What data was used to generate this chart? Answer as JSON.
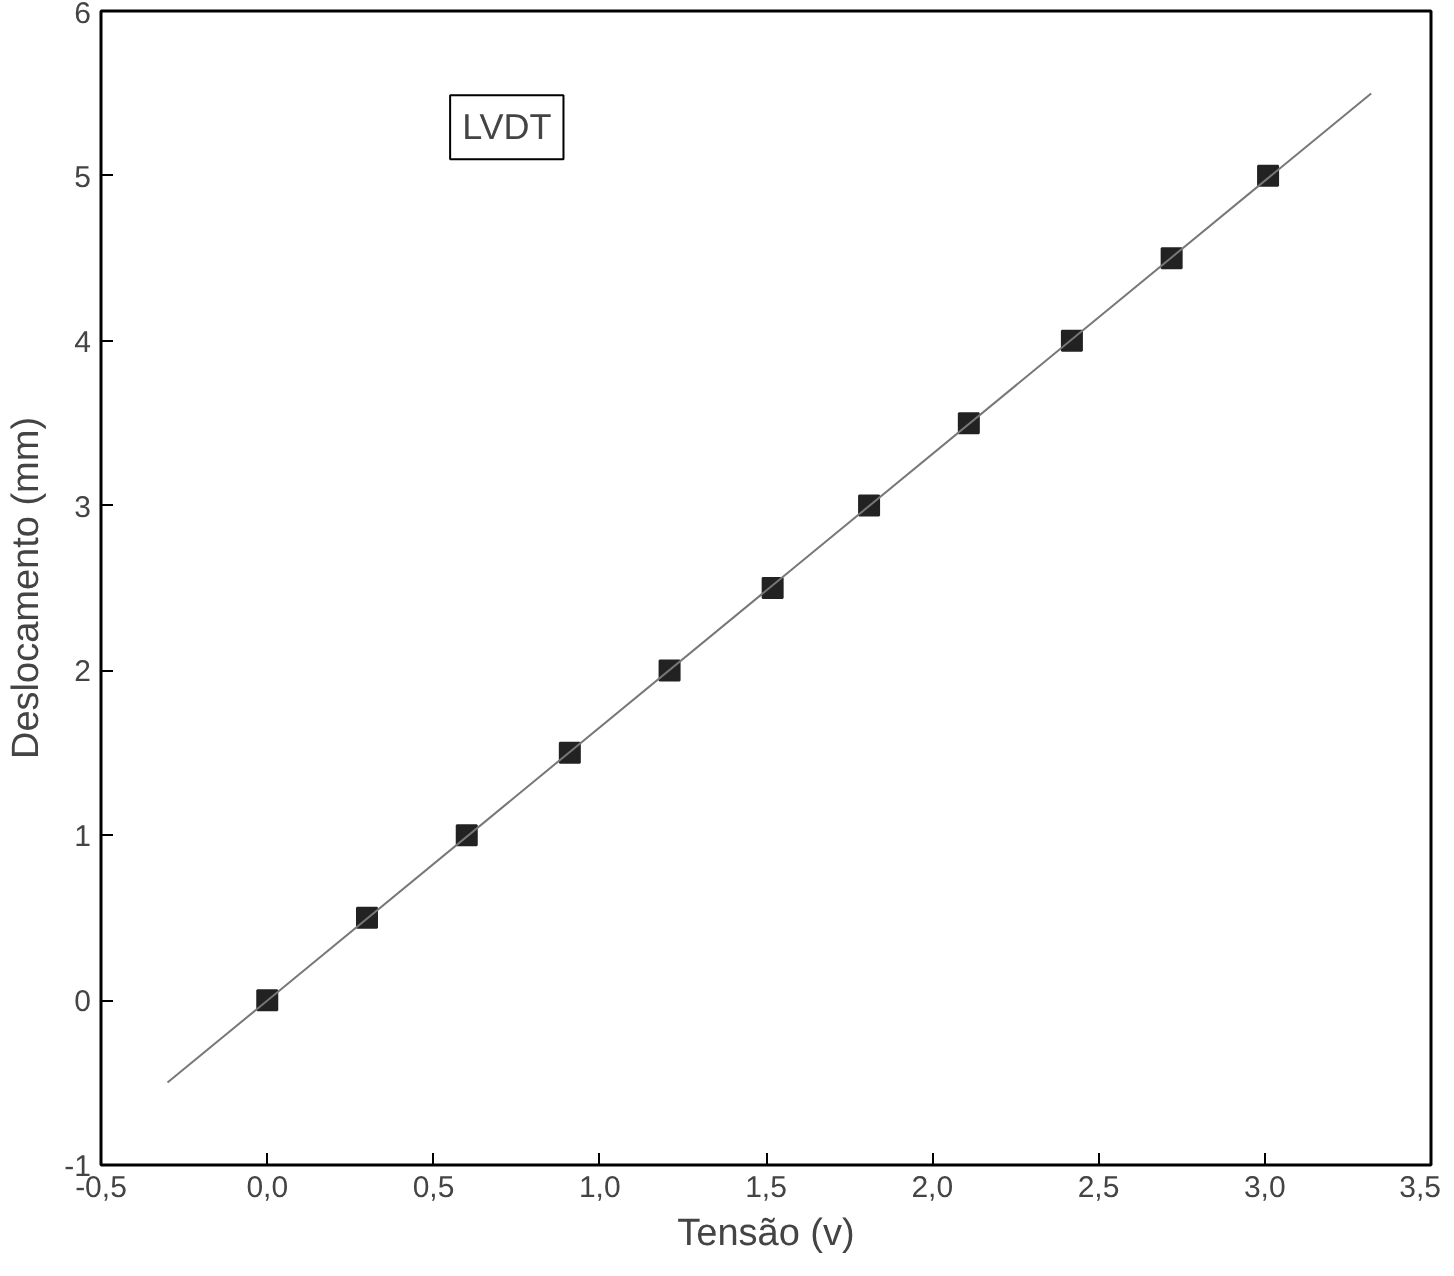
{
  "chart_data": {
    "type": "scatter",
    "xlabel": "Tensão (v)",
    "ylabel": "Deslocamento (mm)",
    "annotations": [
      "LVDT"
    ],
    "series": [
      {
        "color": "#222222",
        "x": [
          0.0,
          0.3,
          0.6,
          0.91,
          1.21,
          1.52,
          1.81,
          2.11,
          2.42,
          2.72,
          3.01
        ],
        "values": [
          0,
          0.5,
          1,
          1.5,
          2,
          2.5,
          3,
          3.5,
          4,
          4.5,
          5
        ],
        "marker": "square"
      },
      {
        "type": "line",
        "color": "#777777",
        "x": [
          -0.3,
          3.32
        ],
        "values": [
          -0.5,
          5.5
        ],
        "line_style": "solid"
      }
    ],
    "xlim": [
      -0.5,
      3.5
    ],
    "ylim": [
      -1,
      6
    ],
    "xticks": [
      {
        "value": -0.5,
        "label": "-0,5"
      },
      {
        "value": 0,
        "label": "0,0"
      },
      {
        "value": 0.5,
        "label": "0,5"
      },
      {
        "value": 1,
        "label": "1,0"
      },
      {
        "value": 1.5,
        "label": "1,5"
      },
      {
        "value": 2,
        "label": "2,0"
      },
      {
        "value": 2.5,
        "label": "2,5"
      },
      {
        "value": 3,
        "label": "3,0"
      },
      {
        "value": 3.5,
        "label": "3,5"
      }
    ],
    "yticks": [
      -1,
      0,
      1,
      2,
      3,
      4,
      5,
      6
    ],
    "grid": false
  }
}
